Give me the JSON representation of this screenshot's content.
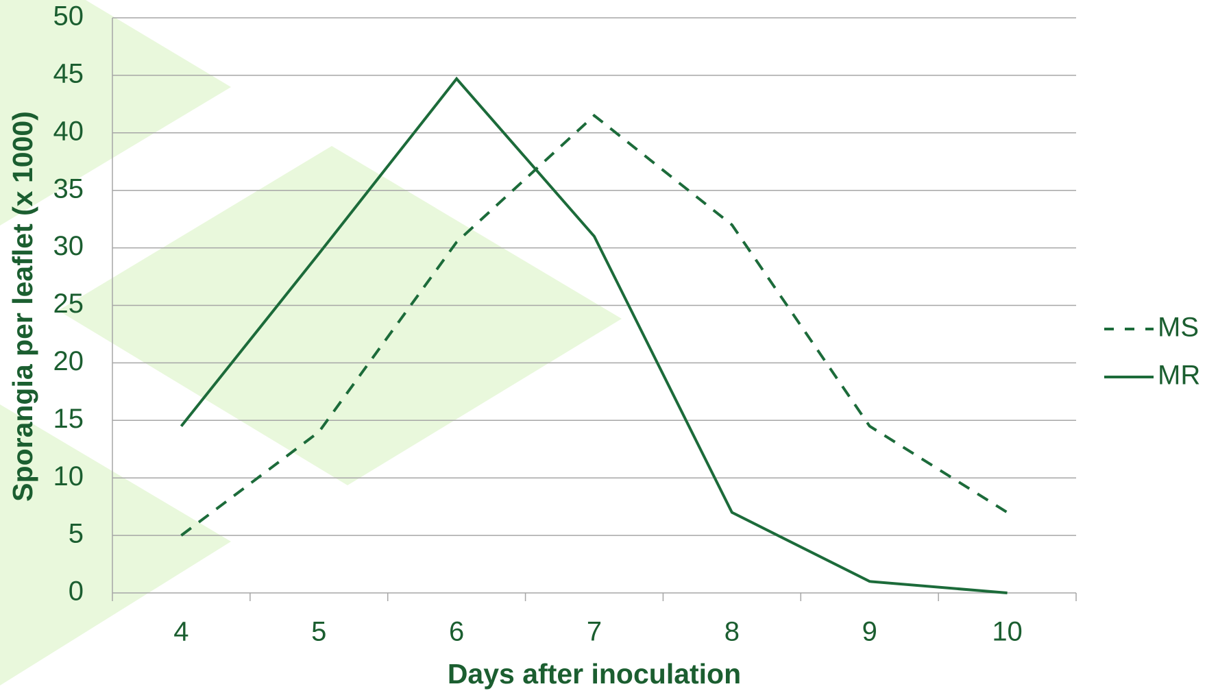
{
  "chart_data": {
    "type": "line",
    "x_label": "Days after inoculation",
    "y_label": "Sporangia per leaflet (x 1000)",
    "categories": [
      "4",
      "5",
      "6",
      "7",
      "8",
      "9",
      "10"
    ],
    "series": [
      {
        "name": "MS",
        "color": "#1c6b3a",
        "line_style": "dashed",
        "values": [
          5,
          14,
          30.5,
          41.5,
          32,
          14.5,
          7
        ]
      },
      {
        "name": "MR",
        "color": "#1c6b3a",
        "line_style": "solid",
        "values": [
          14.5,
          29.5,
          44.7,
          31,
          7,
          1,
          0
        ]
      }
    ],
    "ylim": [
      0,
      50
    ],
    "yticks": [
      0,
      5,
      10,
      15,
      20,
      25,
      30,
      35,
      40,
      45,
      50
    ],
    "grid": true,
    "legend": "right"
  }
}
